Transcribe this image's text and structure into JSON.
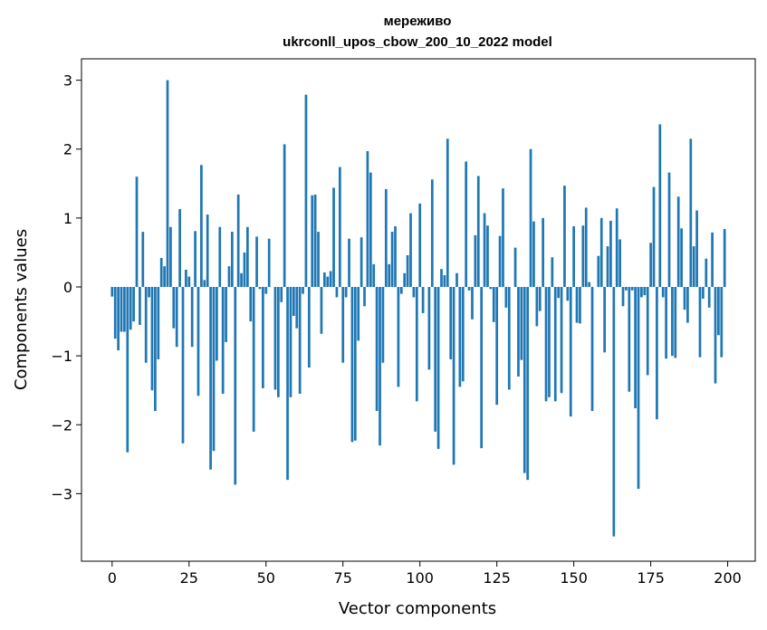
{
  "chart_data": {
    "type": "bar",
    "title": "мереживо",
    "subtitle": "ukrconll_upos_cbow_200_10_2022 model",
    "xlabel": "Vector components",
    "ylabel": "Components values",
    "xlim": [
      -9.95,
      208.95
    ],
    "ylim": [
      -3.98,
      3.31
    ],
    "xticks": [
      0,
      25,
      50,
      75,
      100,
      125,
      150,
      175,
      200
    ],
    "yticks": [
      -3,
      -2,
      -1,
      0,
      1,
      2,
      3
    ],
    "bar_color": "#1f77b4",
    "grid": false,
    "x": [
      0,
      1,
      2,
      3,
      4,
      5,
      6,
      7,
      8,
      9,
      10,
      11,
      12,
      13,
      14,
      15,
      16,
      17,
      18,
      19,
      20,
      21,
      22,
      23,
      24,
      25,
      26,
      27,
      28,
      29,
      30,
      31,
      32,
      33,
      34,
      35,
      36,
      37,
      38,
      39,
      40,
      41,
      42,
      43,
      44,
      45,
      46,
      47,
      48,
      49,
      50,
      51,
      52,
      53,
      54,
      55,
      56,
      57,
      58,
      59,
      60,
      61,
      62,
      63,
      64,
      65,
      66,
      67,
      68,
      69,
      70,
      71,
      72,
      73,
      74,
      75,
      76,
      77,
      78,
      79,
      80,
      81,
      82,
      83,
      84,
      85,
      86,
      87,
      88,
      89,
      90,
      91,
      92,
      93,
      94,
      95,
      96,
      97,
      98,
      99,
      100,
      101,
      102,
      103,
      104,
      105,
      106,
      107,
      108,
      109,
      110,
      111,
      112,
      113,
      114,
      115,
      116,
      117,
      118,
      119,
      120,
      121,
      122,
      123,
      124,
      125,
      126,
      127,
      128,
      129,
      130,
      131,
      132,
      133,
      134,
      135,
      136,
      137,
      138,
      139,
      140,
      141,
      142,
      143,
      144,
      145,
      146,
      147,
      148,
      149,
      150,
      151,
      152,
      153,
      154,
      155,
      156,
      157,
      158,
      159,
      160,
      161,
      162,
      163,
      164,
      165,
      166,
      167,
      168,
      169,
      170,
      171,
      172,
      173,
      174,
      175,
      176,
      177,
      178,
      179,
      180,
      181,
      182,
      183,
      184,
      185,
      186,
      187,
      188,
      189,
      190,
      191,
      192,
      193,
      194,
      195,
      196,
      197,
      198,
      199
    ],
    "values": [
      -0.14,
      -0.75,
      -0.92,
      -0.65,
      -0.65,
      -2.4,
      -0.62,
      -0.5,
      1.6,
      -0.55,
      0.8,
      -1.1,
      -0.15,
      -1.5,
      -1.8,
      -1.05,
      0.42,
      0.3,
      3.0,
      0.87,
      -0.6,
      -0.87,
      1.13,
      -2.27,
      0.25,
      0.15,
      -0.87,
      0.81,
      -1.58,
      1.77,
      0.1,
      1.05,
      -2.65,
      -2.38,
      -1.07,
      0.87,
      -1.55,
      -0.8,
      0.3,
      0.8,
      -2.87,
      1.34,
      0.2,
      0.5,
      0.87,
      -0.5,
      -2.1,
      0.73,
      -0.03,
      -1.47,
      -0.1,
      0.7,
      0.0,
      -1.49,
      -1.6,
      -0.22,
      2.07,
      -2.8,
      -1.6,
      -0.42,
      -0.6,
      -1.55,
      -0.1,
      2.79,
      -1.17,
      1.33,
      1.34,
      0.8,
      -0.68,
      0.21,
      0.15,
      0.23,
      1.44,
      -0.15,
      1.74,
      -1.1,
      -0.15,
      0.7,
      -2.25,
      -2.23,
      -0.78,
      0.72,
      -0.28,
      1.97,
      1.66,
      0.33,
      -1.8,
      -2.3,
      -1.1,
      1.42,
      0.33,
      0.8,
      0.88,
      -1.45,
      -0.1,
      0.2,
      0.46,
      1.07,
      -0.15,
      -1.66,
      1.21,
      -0.38,
      0.0,
      -1.2,
      1.56,
      -2.1,
      -2.35,
      0.26,
      0.17,
      2.15,
      -1.05,
      -2.58,
      0.2,
      -1.45,
      -1.37,
      1.82,
      -0.05,
      -0.47,
      0.75,
      1.61,
      -2.34,
      1.07,
      0.89,
      -0.03,
      -0.51,
      -1.71,
      0.74,
      1.43,
      -0.3,
      -1.49,
      0.0,
      0.57,
      -1.3,
      -1.06,
      -2.7,
      -2.8,
      2.0,
      0.95,
      -0.57,
      -0.35,
      1.0,
      -1.66,
      -1.6,
      0.43,
      -1.66,
      -0.16,
      -1.54,
      1.47,
      -0.2,
      -1.88,
      0.88,
      -0.52,
      -0.53,
      0.89,
      1.15,
      0.07,
      -1.8,
      0.0,
      0.45,
      1.0,
      -0.95,
      0.59,
      0.96,
      -3.62,
      1.14,
      0.69,
      -0.28,
      -0.05,
      -1.52,
      -0.05,
      -1.76,
      -2.93,
      -0.15,
      -0.12,
      -1.28,
      0.64,
      1.45,
      -1.92,
      2.36,
      -0.15,
      -1.04,
      1.66,
      -1.0,
      -1.03,
      1.31,
      0.85,
      -0.33,
      -0.52,
      2.15,
      0.59,
      1.11,
      -1.02,
      -0.17,
      0.41,
      -0.3,
      0.79,
      -1.4,
      -0.7,
      -1.02,
      0.84
    ]
  }
}
